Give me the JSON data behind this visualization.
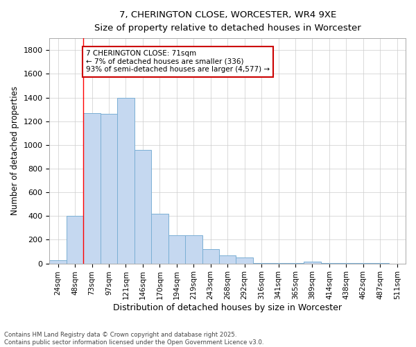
{
  "title_line1": "7, CHERINGTON CLOSE, WORCESTER, WR4 9XE",
  "title_line2": "Size of property relative to detached houses in Worcester",
  "xlabel": "Distribution of detached houses by size in Worcester",
  "ylabel": "Number of detached properties",
  "categories": [
    "24sqm",
    "48sqm",
    "73sqm",
    "97sqm",
    "121sqm",
    "146sqm",
    "170sqm",
    "194sqm",
    "219sqm",
    "243sqm",
    "268sqm",
    "292sqm",
    "316sqm",
    "341sqm",
    "365sqm",
    "389sqm",
    "414sqm",
    "438sqm",
    "462sqm",
    "487sqm",
    "511sqm"
  ],
  "values": [
    25,
    400,
    1270,
    1260,
    1400,
    960,
    420,
    235,
    235,
    120,
    70,
    50,
    5,
    5,
    5,
    18,
    5,
    3,
    2,
    2,
    0
  ],
  "bar_color": "#c5d8f0",
  "bar_edge_color": "#7aafd4",
  "red_line_index": 2,
  "annotation_text": "7 CHERINGTON CLOSE: 71sqm\n← 7% of detached houses are smaller (336)\n93% of semi-detached houses are larger (4,577) →",
  "annotation_box_color": "#ffffff",
  "annotation_box_edge": "#cc0000",
  "ylim": [
    0,
    1900
  ],
  "yticks": [
    0,
    200,
    400,
    600,
    800,
    1000,
    1200,
    1400,
    1600,
    1800
  ],
  "grid_color": "#cccccc",
  "background_color": "#ffffff",
  "plot_bg_color": "#ffffff",
  "footer_line1": "Contains HM Land Registry data © Crown copyright and database right 2025.",
  "footer_line2": "Contains public sector information licensed under the Open Government Licence v3.0."
}
